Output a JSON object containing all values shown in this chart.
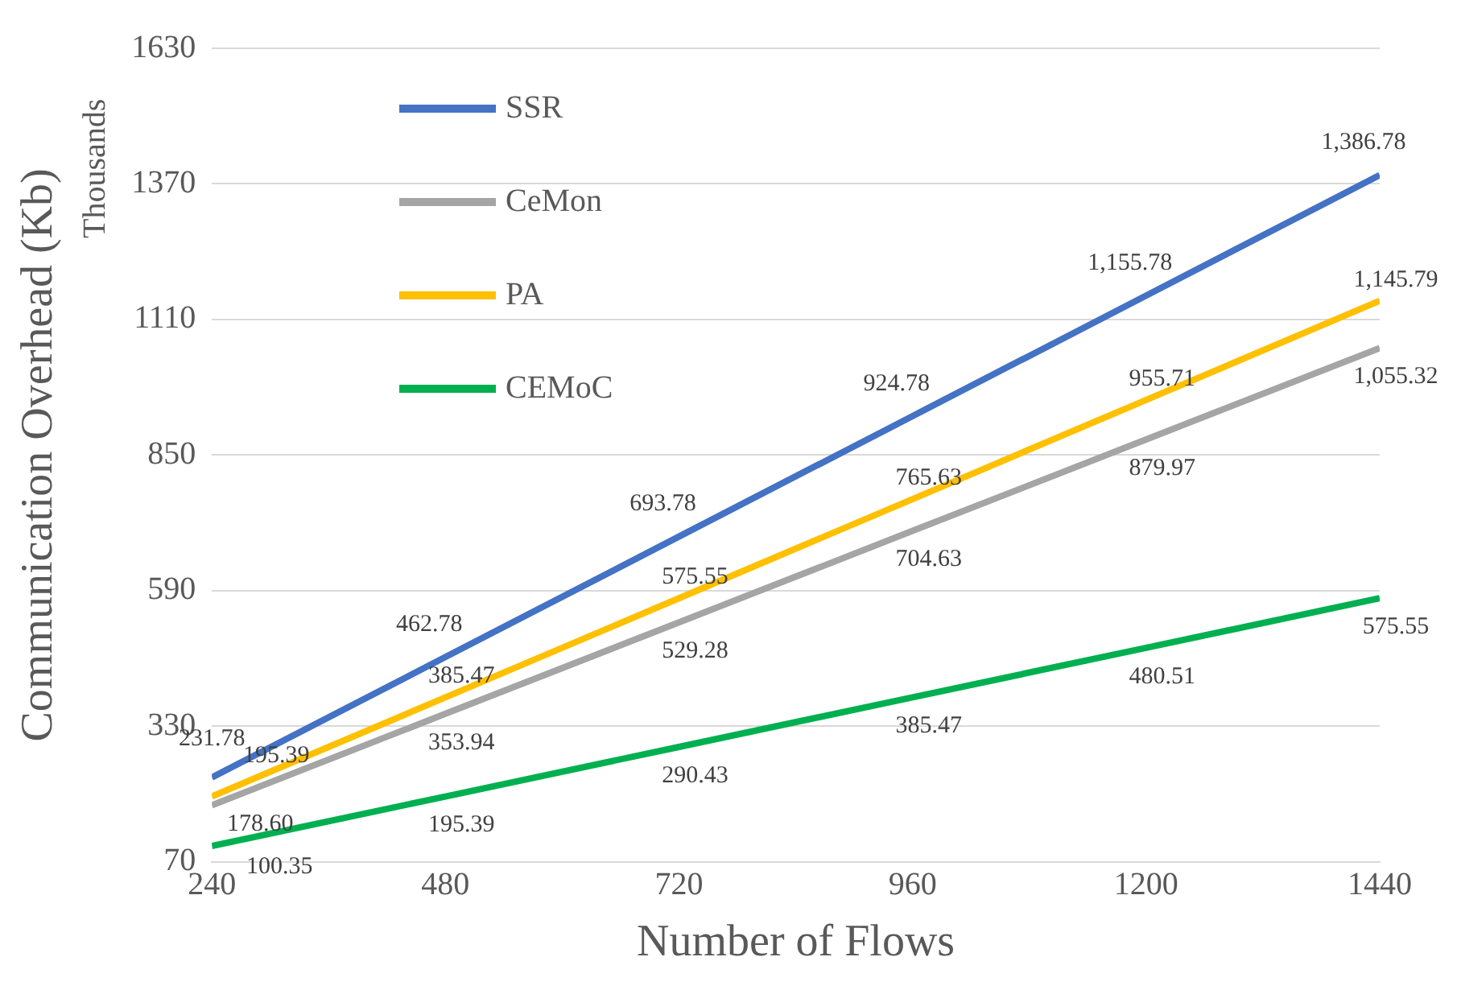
{
  "chart_data": {
    "type": "line",
    "xlabel": "Number of Flows",
    "ylabel": "Communication Overhead (Kb)",
    "annotations": [
      "Thousands"
    ],
    "x": [
      240,
      480,
      720,
      960,
      1200,
      1440
    ],
    "xlim": [
      240,
      1440
    ],
    "xticks": [
      240,
      480,
      720,
      960,
      1200,
      1440
    ],
    "ylim": [
      70,
      1630
    ],
    "yticks": [
      70,
      330,
      590,
      850,
      1110,
      1370,
      1630
    ],
    "grid": "y",
    "legend": "top left",
    "marker": "none",
    "line_style": "solid",
    "data_labels": true,
    "series": [
      {
        "name": "SSR",
        "color": "#4472c4",
        "values": [
          231.78,
          462.78,
          693.78,
          924.78,
          1155.78,
          1386.78
        ],
        "value_labels": [
          "231.78",
          "462.78",
          "693.78",
          "924.78",
          "1,155.78",
          "1,386.78"
        ]
      },
      {
        "name": "CeMon",
        "color": "#a5a5a5",
        "values": [
          178.6,
          353.94,
          529.28,
          704.63,
          879.97,
          1055.32
        ],
        "value_labels": [
          "178.60",
          "353.94",
          "529.28",
          "704.63",
          "879.97",
          "1,055.32"
        ]
      },
      {
        "name": "PA",
        "color": "#ffc000",
        "values": [
          195.39,
          385.47,
          575.55,
          765.63,
          955.71,
          1145.79
        ],
        "value_labels": [
          "195.39",
          "385.47",
          "575.55",
          "765.63",
          "955.71",
          "1,145.79"
        ]
      },
      {
        "name": "CEMoC",
        "color": "#00b050",
        "values": [
          100.35,
          195.39,
          290.43,
          385.47,
          480.51,
          575.55
        ],
        "value_labels": [
          "100.35",
          "195.39",
          "290.43",
          "385.47",
          "480.51",
          "575.55"
        ]
      }
    ]
  }
}
